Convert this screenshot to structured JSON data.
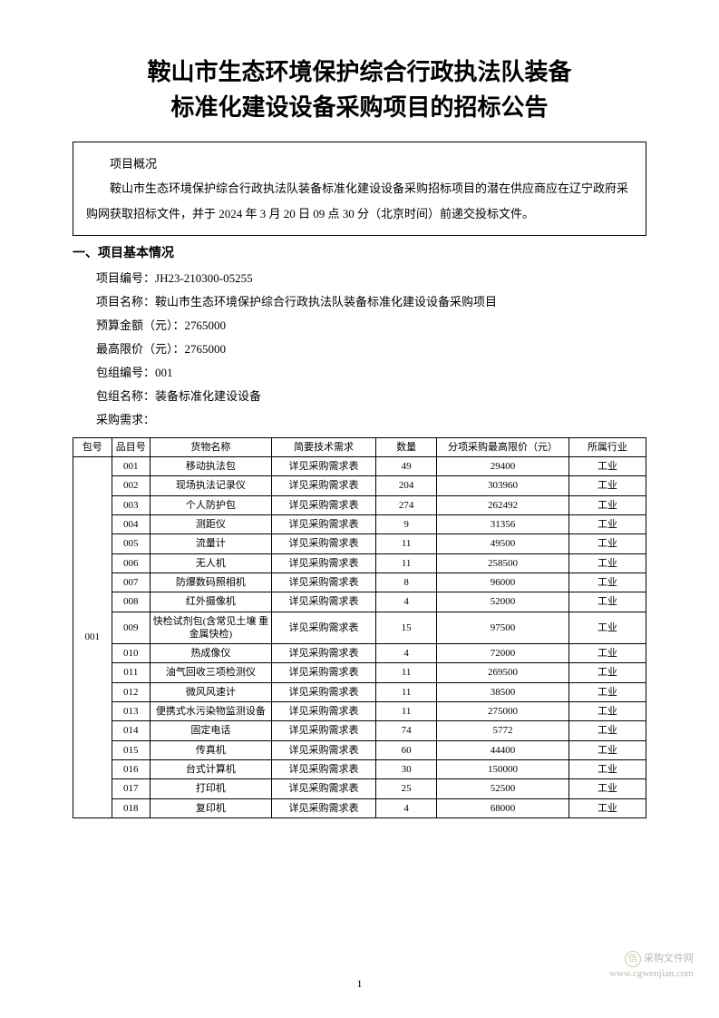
{
  "title_line1": "鞍山市生态环境保护综合行政执法队装备",
  "title_line2": "标准化建设设备采购项目的招标公告",
  "overview": {
    "label": "项目概况",
    "text": "鞍山市生态环境保护综合行政执法队装备标准化建设设备采购招标项目的潜在供应商应在辽宁政府采购网获取招标文件，并于 2024 年 3 月 20 日 09 点 30 分（北京时间）前递交投标文件。"
  },
  "section1_heading": "一、项目基本情况",
  "info": {
    "project_no_label": "项目编号：",
    "project_no": "JH23-210300-05255",
    "project_name_label": "项目名称：",
    "project_name": "鞍山市生态环境保护综合行政执法队装备标准化建设设备采购项目",
    "budget_label": "预算金额（元）：",
    "budget": "2765000",
    "maxprice_label": "最高限价（元）：",
    "maxprice": "2765000",
    "pkg_no_label": "包组编号：",
    "pkg_no": "001",
    "pkg_name_label": "包组名称：",
    "pkg_name": "装备标准化建设设备",
    "demand_label": "采购需求："
  },
  "table": {
    "headers": {
      "pkg": "包号",
      "item": "品目号",
      "name": "货物名称",
      "tech": "简要技术需求",
      "qty": "数量",
      "price": "分项采购最高限价（元）",
      "industry": "所属行业"
    },
    "pkg_value": "001",
    "tech_common": "详见采购需求表",
    "industry_common": "工业",
    "rows": [
      {
        "item": "001",
        "name": "移动执法包",
        "qty": "49",
        "price": "29400"
      },
      {
        "item": "002",
        "name": "现场执法记录仪",
        "qty": "204",
        "price": "303960"
      },
      {
        "item": "003",
        "name": "个人防护包",
        "qty": "274",
        "price": "262492"
      },
      {
        "item": "004",
        "name": "测距仪",
        "qty": "9",
        "price": "31356"
      },
      {
        "item": "005",
        "name": "流量计",
        "qty": "11",
        "price": "49500"
      },
      {
        "item": "006",
        "name": "无人机",
        "qty": "11",
        "price": "258500"
      },
      {
        "item": "007",
        "name": "防爆数码照相机",
        "qty": "8",
        "price": "96000"
      },
      {
        "item": "008",
        "name": "红外摄像机",
        "qty": "4",
        "price": "52000"
      },
      {
        "item": "009",
        "name": "快检试剂包(含常见土壤 重金属快检)",
        "qty": "15",
        "price": "97500"
      },
      {
        "item": "010",
        "name": "热成像仪",
        "qty": "4",
        "price": "72000"
      },
      {
        "item": "011",
        "name": "油气回收三项检测仪",
        "qty": "11",
        "price": "269500"
      },
      {
        "item": "012",
        "name": "微风风速计",
        "qty": "11",
        "price": "38500"
      },
      {
        "item": "013",
        "name": "便携式水污染物监测设备",
        "qty": "11",
        "price": "275000"
      },
      {
        "item": "014",
        "name": "固定电话",
        "qty": "74",
        "price": "5772"
      },
      {
        "item": "015",
        "name": "传真机",
        "qty": "60",
        "price": "44400"
      },
      {
        "item": "016",
        "name": "台式计算机",
        "qty": "30",
        "price": "150000"
      },
      {
        "item": "017",
        "name": "打印机",
        "qty": "25",
        "price": "52500"
      },
      {
        "item": "018",
        "name": "复印机",
        "qty": "4",
        "price": "68000"
      }
    ]
  },
  "page_number": "1",
  "watermark": {
    "brand": "采购文件网",
    "url": "www.cgwenjian.com"
  },
  "colors": {
    "text": "#000000",
    "background": "#ffffff",
    "border": "#000000",
    "watermark": "#b8b8b8",
    "watermark_logo": "#d0c8a8"
  }
}
